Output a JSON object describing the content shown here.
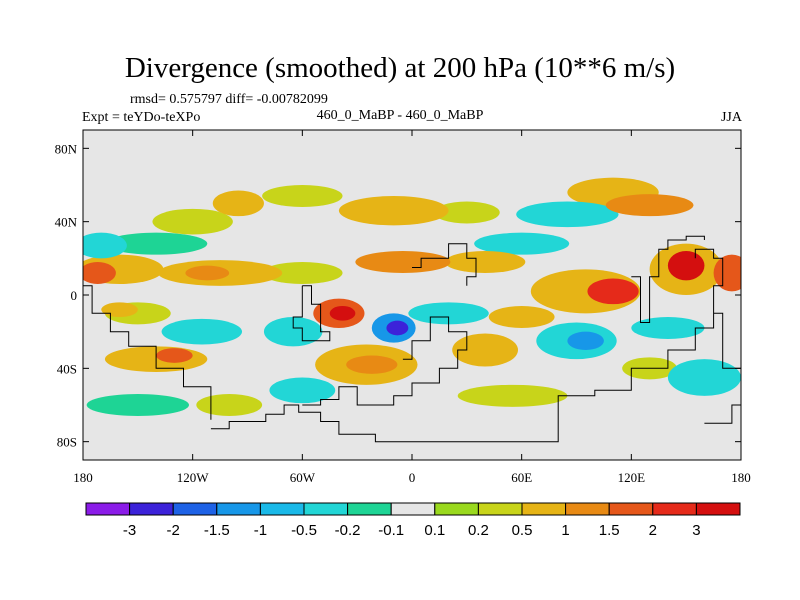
{
  "chart_data": {
    "type": "heatmap",
    "title": "Divergence (smoothed) at 200 hPa (10**6 m/s)",
    "stats_text": "rmsd= 0.575797 diff= -0.00782099",
    "expt_text": "Expt = teYDo-teXPo",
    "cases_text": "460_0_MaBP - 460_0_MaBP",
    "season": "JJA",
    "xlim": [
      -180,
      180
    ],
    "ylim": [
      -90,
      90
    ],
    "x_ticks": [
      {
        "value": -180,
        "label": "180"
      },
      {
        "value": -120,
        "label": "120W"
      },
      {
        "value": -60,
        "label": "60W"
      },
      {
        "value": 0,
        "label": "0"
      },
      {
        "value": 60,
        "label": "60E"
      },
      {
        "value": 120,
        "label": "120E"
      },
      {
        "value": 180,
        "label": "180"
      }
    ],
    "y_ticks": [
      {
        "value": 80,
        "label": "80N"
      },
      {
        "value": 40,
        "label": "40N"
      },
      {
        "value": 0,
        "label": "0"
      },
      {
        "value": -40,
        "label": "40S"
      },
      {
        "value": -80,
        "label": "80S"
      }
    ],
    "colorbar": {
      "colors": [
        "#8b1ce8",
        "#3c22d9",
        "#1e62e6",
        "#1797e8",
        "#1ab9e8",
        "#22d6d6",
        "#1ed495",
        "#e6e6e6",
        "#9ad91e",
        "#c8d41a",
        "#e6b416",
        "#e88a14",
        "#e5571a",
        "#e52a1a",
        "#d40f0f"
      ],
      "labels": [
        "-3",
        "-2",
        "-1.5",
        "-1",
        "-0.5",
        "-0.2",
        "-0.1",
        "0.1",
        "0.2",
        "0.5",
        "1",
        "1.5",
        "2",
        "3"
      ]
    },
    "features": [
      {
        "lon": -172,
        "lat": 12,
        "rx": 10,
        "ry": 6,
        "level": 1.5
      },
      {
        "lon": -160,
        "lat": 14,
        "rx": 24,
        "ry": 8,
        "level": 0.5
      },
      {
        "lon": -170,
        "lat": 27,
        "rx": 14,
        "ry": 7,
        "level": -0.5
      },
      {
        "lon": -140,
        "lat": 28,
        "rx": 28,
        "ry": 6,
        "level": -0.2
      },
      {
        "lon": -105,
        "lat": 12,
        "rx": 34,
        "ry": 7,
        "level": 0.5
      },
      {
        "lon": -112,
        "lat": 12,
        "rx": 12,
        "ry": 4,
        "level": 1
      },
      {
        "lon": -60,
        "lat": 12,
        "rx": 22,
        "ry": 6,
        "level": 0.2
      },
      {
        "lon": -120,
        "lat": 40,
        "rx": 22,
        "ry": 7,
        "level": 0.2
      },
      {
        "lon": -95,
        "lat": 50,
        "rx": 14,
        "ry": 7,
        "level": 0.5
      },
      {
        "lon": -60,
        "lat": 54,
        "rx": 22,
        "ry": 6,
        "level": 0.2
      },
      {
        "lon": -10,
        "lat": 46,
        "rx": 30,
        "ry": 8,
        "level": 0.5
      },
      {
        "lon": 30,
        "lat": 45,
        "rx": 18,
        "ry": 6,
        "level": 0.2
      },
      {
        "lon": 110,
        "lat": 56,
        "rx": 25,
        "ry": 8,
        "level": 0.5
      },
      {
        "lon": 130,
        "lat": 49,
        "rx": 24,
        "ry": 6,
        "level": 1
      },
      {
        "lon": 85,
        "lat": 44,
        "rx": 28,
        "ry": 7,
        "level": -0.5
      },
      {
        "lon": 60,
        "lat": 28,
        "rx": 26,
        "ry": 6,
        "level": -0.5
      },
      {
        "lon": 40,
        "lat": 18,
        "rx": 22,
        "ry": 6,
        "level": 0.5
      },
      {
        "lon": 110,
        "lat": 2,
        "rx": 14,
        "ry": 7,
        "level": 2
      },
      {
        "lon": 95,
        "lat": 2,
        "rx": 30,
        "ry": 12,
        "level": 0.5
      },
      {
        "lon": 150,
        "lat": 16,
        "rx": 10,
        "ry": 8,
        "level": 3
      },
      {
        "lon": 150,
        "lat": 14,
        "rx": 20,
        "ry": 14,
        "level": 0.5
      },
      {
        "lon": 175,
        "lat": 12,
        "rx": 10,
        "ry": 10,
        "level": 1.5
      },
      {
        "lon": -5,
        "lat": 18,
        "rx": 26,
        "ry": 6,
        "level": 1
      },
      {
        "lon": -40,
        "lat": -10,
        "rx": 14,
        "ry": 8,
        "level": 1.5
      },
      {
        "lon": -38,
        "lat": -10,
        "rx": 7,
        "ry": 4,
        "level": 3
      },
      {
        "lon": -10,
        "lat": -18,
        "rx": 12,
        "ry": 8,
        "level": -1.5
      },
      {
        "lon": -8,
        "lat": -18,
        "rx": 6,
        "ry": 4,
        "level": -3
      },
      {
        "lon": -65,
        "lat": -20,
        "rx": 16,
        "ry": 8,
        "level": -0.5
      },
      {
        "lon": -115,
        "lat": -20,
        "rx": 22,
        "ry": 7,
        "level": -0.5
      },
      {
        "lon": -150,
        "lat": -10,
        "rx": 18,
        "ry": 6,
        "level": 0.2
      },
      {
        "lon": -160,
        "lat": -8,
        "rx": 10,
        "ry": 4,
        "level": 0.5
      },
      {
        "lon": -140,
        "lat": -35,
        "rx": 28,
        "ry": 7,
        "level": 0.5
      },
      {
        "lon": -130,
        "lat": -33,
        "rx": 10,
        "ry": 4,
        "level": 1.5
      },
      {
        "lon": -25,
        "lat": -38,
        "rx": 28,
        "ry": 11,
        "level": 0.5
      },
      {
        "lon": -22,
        "lat": -38,
        "rx": 14,
        "ry": 5,
        "level": 1
      },
      {
        "lon": 20,
        "lat": -10,
        "rx": 22,
        "ry": 6,
        "level": -0.5
      },
      {
        "lon": 40,
        "lat": -30,
        "rx": 18,
        "ry": 9,
        "level": 0.5
      },
      {
        "lon": 90,
        "lat": -25,
        "rx": 22,
        "ry": 10,
        "level": -0.5
      },
      {
        "lon": 95,
        "lat": -25,
        "rx": 10,
        "ry": 5,
        "level": -1.5
      },
      {
        "lon": 60,
        "lat": -12,
        "rx": 18,
        "ry": 6,
        "level": 0.5
      },
      {
        "lon": 140,
        "lat": -18,
        "rx": 20,
        "ry": 6,
        "level": -0.5
      },
      {
        "lon": 160,
        "lat": -45,
        "rx": 20,
        "ry": 10,
        "level": -0.5
      },
      {
        "lon": 130,
        "lat": -40,
        "rx": 15,
        "ry": 6,
        "level": 0.2
      },
      {
        "lon": -60,
        "lat": -52,
        "rx": 18,
        "ry": 7,
        "level": -0.5
      },
      {
        "lon": 55,
        "lat": -55,
        "rx": 30,
        "ry": 6,
        "level": 0.2
      },
      {
        "lon": -150,
        "lat": -60,
        "rx": 28,
        "ry": 6,
        "level": -0.2
      },
      {
        "lon": -100,
        "lat": -60,
        "rx": 18,
        "ry": 6,
        "level": 0.2
      }
    ],
    "coastline": [
      [
        [
          -110,
          -73
        ],
        [
          -100,
          -73
        ],
        [
          -100,
          -69
        ],
        [
          -80,
          -69
        ],
        [
          -80,
          -65
        ],
        [
          -70,
          -65
        ],
        [
          -70,
          -60
        ],
        [
          -62,
          -60
        ],
        [
          -62,
          -64
        ],
        [
          -50,
          -64
        ],
        [
          -50,
          -69
        ],
        [
          -40,
          -69
        ],
        [
          -40,
          -76
        ],
        [
          -20,
          -76
        ],
        [
          -20,
          -80
        ],
        [
          0,
          -80
        ],
        [
          20,
          -80
        ],
        [
          40,
          -80
        ],
        [
          60,
          -80
        ],
        [
          80,
          -80
        ],
        [
          80,
          -55
        ],
        [
          100,
          -55
        ],
        [
          100,
          -52
        ],
        [
          120,
          -52
        ],
        [
          120,
          -40
        ],
        [
          140,
          -40
        ],
        [
          140,
          -30
        ],
        [
          155,
          -30
        ],
        [
          155,
          -18
        ],
        [
          165,
          -18
        ],
        [
          165,
          5
        ],
        [
          170,
          5
        ],
        [
          170,
          20
        ],
        [
          165,
          20
        ],
        [
          165,
          25
        ],
        [
          160,
          25
        ],
        [
          155,
          25
        ],
        [
          155,
          20
        ]
      ],
      [
        [
          -180,
          5
        ],
        [
          -175,
          5
        ],
        [
          -175,
          -10
        ],
        [
          -165,
          -10
        ],
        [
          -165,
          -20
        ],
        [
          -155,
          -20
        ],
        [
          -155,
          -28
        ],
        [
          -140,
          -28
        ],
        [
          -140,
          -40
        ],
        [
          -125,
          -40
        ],
        [
          -125,
          -50
        ],
        [
          -110,
          -50
        ],
        [
          -110,
          -68
        ]
      ],
      [
        [
          -60,
          5
        ],
        [
          -55,
          5
        ],
        [
          -55,
          -5
        ],
        [
          -50,
          -5
        ],
        [
          -50,
          -20
        ],
        [
          -45,
          -20
        ],
        [
          -45,
          -25
        ],
        [
          -60,
          -25
        ],
        [
          -60,
          -18
        ],
        [
          -65,
          -18
        ],
        [
          -65,
          -12
        ],
        [
          -60,
          -12
        ],
        [
          -60,
          5
        ]
      ],
      [
        [
          -60,
          -60
        ],
        [
          -50,
          -60
        ],
        [
          -50,
          -57
        ],
        [
          -40,
          -57
        ],
        [
          -40,
          -50
        ],
        [
          -30,
          -50
        ],
        [
          -30,
          -60
        ],
        [
          -20,
          -60
        ],
        [
          -10,
          -60
        ],
        [
          -10,
          -55
        ],
        [
          0,
          -55
        ],
        [
          0,
          -48
        ],
        [
          15,
          -48
        ],
        [
          15,
          -40
        ],
        [
          25,
          -40
        ],
        [
          25,
          -30
        ],
        [
          30,
          -30
        ],
        [
          30,
          -20
        ],
        [
          20,
          -20
        ],
        [
          20,
          -12
        ],
        [
          10,
          -12
        ],
        [
          10,
          -25
        ],
        [
          0,
          -25
        ],
        [
          0,
          -35
        ],
        [
          -5,
          -35
        ]
      ],
      [
        [
          0,
          15
        ],
        [
          5,
          15
        ],
        [
          5,
          20
        ],
        [
          20,
          20
        ],
        [
          20,
          28
        ],
        [
          30,
          28
        ],
        [
          30,
          20
        ],
        [
          35,
          20
        ],
        [
          35,
          10
        ],
        [
          30,
          10
        ],
        [
          30,
          5
        ]
      ],
      [
        [
          120,
          10
        ],
        [
          125,
          10
        ],
        [
          125,
          -15
        ],
        [
          130,
          -15
        ],
        [
          130,
          10
        ],
        [
          135,
          10
        ],
        [
          135,
          25
        ],
        [
          140,
          25
        ],
        [
          140,
          30
        ],
        [
          150,
          30
        ],
        [
          150,
          32
        ],
        [
          160,
          32
        ],
        [
          160,
          30
        ]
      ],
      [
        [
          165,
          -10
        ],
        [
          170,
          -10
        ],
        [
          170,
          -40
        ],
        [
          180,
          -40
        ],
        [
          180,
          -60
        ],
        [
          175,
          -60
        ],
        [
          175,
          -70
        ],
        [
          160,
          -70
        ]
      ]
    ]
  }
}
